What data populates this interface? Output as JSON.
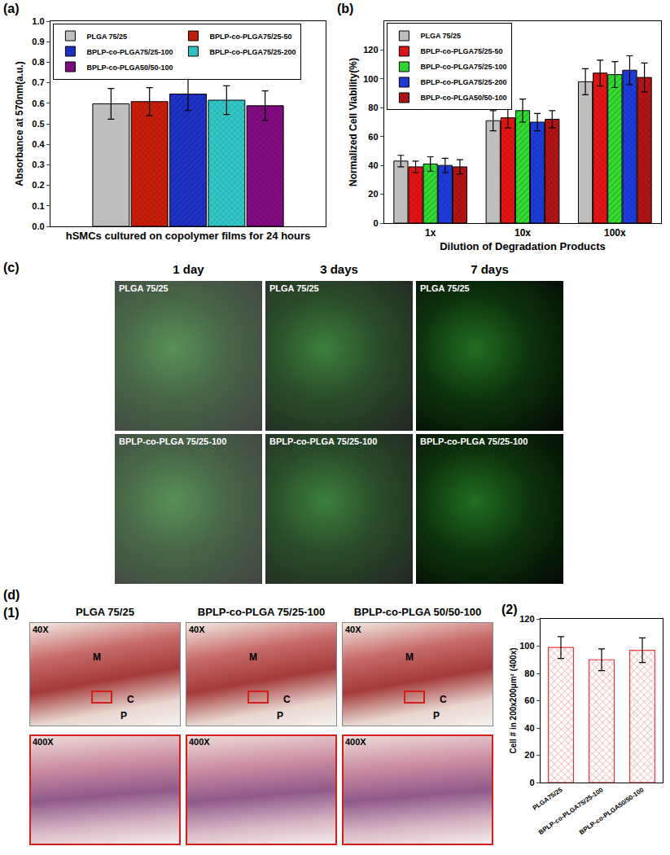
{
  "chart_data": [
    {
      "type": "bar",
      "panel_label": "(a)",
      "x_label": "hSMCs cultured on copolymer films for 24 hours",
      "y_label": "Absorbance at 570nm(a.u.)",
      "categories": [
        null
      ],
      "series": [
        {
          "name": "PLGA 75/25",
          "color": "#bebebe",
          "values": [
            0.597
          ],
          "errors": [
            0.075
          ]
        },
        {
          "name": "BPLP-co-PLGA75/25-50",
          "color": "#c81e0a",
          "values": [
            0.608
          ],
          "errors": [
            0.068
          ]
        },
        {
          "name": "BPLP-co-PLGA75/25-100",
          "color": "#1e32c8",
          "values": [
            0.645
          ],
          "errors": [
            0.08
          ]
        },
        {
          "name": "BPLP-co-PLGA75/25-200",
          "color": "#32c8c8",
          "values": [
            0.615
          ],
          "errors": [
            0.07
          ]
        },
        {
          "name": "BPLP-co-PLGA50/50-100",
          "color": "#820a82",
          "values": [
            0.588
          ],
          "errors": [
            0.072
          ]
        }
      ],
      "ylim": [
        0,
        1.0
      ],
      "yticks": [
        {
          "value": 0,
          "label": "0.0"
        },
        {
          "value": 0.1,
          "label": "0.1"
        },
        {
          "value": 0.2,
          "label": "0.2"
        },
        {
          "value": 0.3,
          "label": "0.3"
        },
        {
          "value": 0.4,
          "label": "0.4"
        },
        {
          "value": 0.5,
          "label": "0.5"
        },
        {
          "value": 0.6,
          "label": "0.6"
        },
        {
          "value": 0.7,
          "label": "0.7"
        },
        {
          "value": 0.8,
          "label": "0.8"
        },
        {
          "value": 0.9,
          "label": "0.9"
        },
        {
          "value": 1.0,
          "label": "1.0"
        }
      ],
      "legend": "top left",
      "tick_labels": "y",
      "grid": false
    },
    {
      "type": "bar",
      "panel_label": "(b)",
      "x_label": "Dilution of Degradation Products",
      "y_label": "Normalized Cell Viability(%)",
      "categories": [
        "1x",
        "10x",
        "100x"
      ],
      "series": [
        {
          "name": "PLGA 75/25",
          "color": "#bebebe",
          "values": [
            43,
            71,
            98
          ],
          "errors": [
            4,
            7,
            9
          ]
        },
        {
          "name": "BPLP-co-PLGA75/25-50",
          "color": "#e61414",
          "values": [
            39,
            73,
            104
          ],
          "errors": [
            4,
            7,
            9
          ]
        },
        {
          "name": "BPLP-co-PLGA75/25-100",
          "color": "#32dc32",
          "values": [
            41,
            78,
            103
          ],
          "errors": [
            5,
            8,
            9
          ]
        },
        {
          "name": "BPLP-co-PLGA75/25-200",
          "color": "#1e3cdc",
          "values": [
            40,
            70,
            106
          ],
          "errors": [
            5,
            6,
            10
          ]
        },
        {
          "name": "BPLP-co-PLGA50/50-100",
          "color": "#b41414",
          "values": [
            39,
            72,
            101
          ],
          "errors": [
            5,
            6,
            10
          ]
        }
      ],
      "ylim": [
        0,
        140
      ],
      "yticks": [
        0,
        20,
        40,
        60,
        80,
        100,
        120
      ],
      "legend": "top left",
      "grid": false
    },
    {
      "type": "bar",
      "panel_label": "(2)",
      "y_label": "Cell # in 200x200μm² (400x)",
      "categories": [
        "PLGA75/25",
        "BPLP-co-PLGA75/25-100",
        "BPLP-co-PLGA50/50-100"
      ],
      "values": [
        99,
        90,
        97
      ],
      "errors": [
        8,
        8,
        9
      ],
      "color": "#e8383d",
      "ylim": [
        0,
        120
      ],
      "yticks": [
        0,
        20,
        40,
        60,
        80,
        100,
        120
      ],
      "grid": false
    }
  ],
  "micrographs": {
    "label": "(c)",
    "columns": [
      "1 day",
      "3 days",
      "7 days"
    ],
    "rows": [
      "PLGA 75/25",
      "BPLP-co-PLGA 75/25-100"
    ]
  },
  "histology": {
    "label": "(d)",
    "sublabel": "(1)",
    "columns": [
      "PLGA 75/25",
      "BPLP-co-PLGA 75/25-100",
      "BPLP-co-PLGA 50/50-100"
    ],
    "magnifications": [
      "40X",
      "400X"
    ],
    "regions": [
      "M",
      "C",
      "P"
    ]
  }
}
